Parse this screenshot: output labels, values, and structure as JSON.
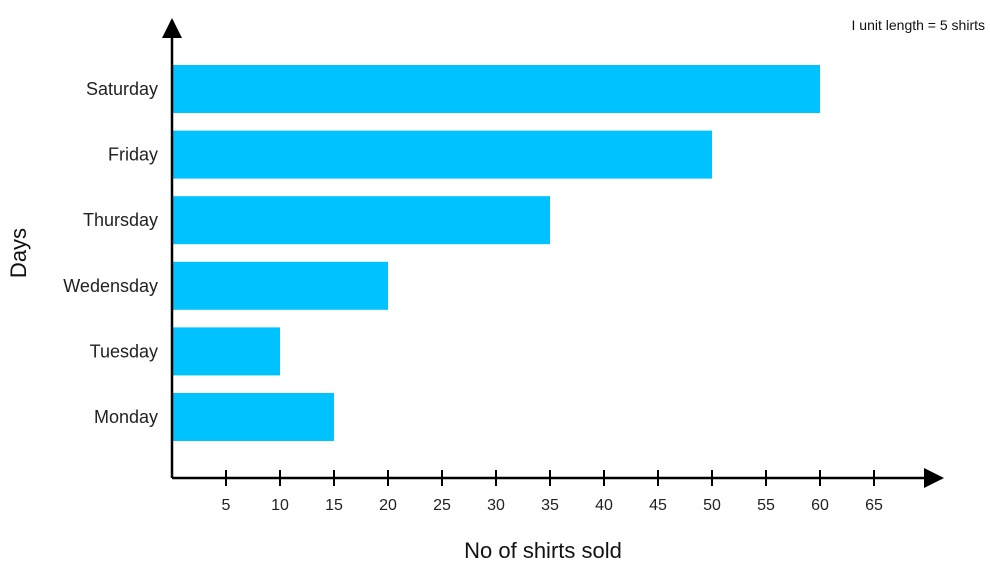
{
  "chart_data": {
    "type": "bar",
    "orientation": "horizontal",
    "title": "",
    "note": "I unit length = 5 shirts",
    "xlabel": "No of shirts sold",
    "ylabel": "Days",
    "categories": [
      "Monday",
      "Tuesday",
      "Wedensday",
      "Thursday",
      "Friday",
      "Saturday"
    ],
    "values": [
      15,
      10,
      20,
      35,
      50,
      60
    ],
    "xticks": [
      5,
      10,
      15,
      20,
      25,
      30,
      35,
      40,
      45,
      50,
      55,
      60,
      65
    ],
    "xlim": [
      0,
      65
    ],
    "grid": false,
    "bar_color": "#00C2FF",
    "axis_color": "#000000"
  }
}
